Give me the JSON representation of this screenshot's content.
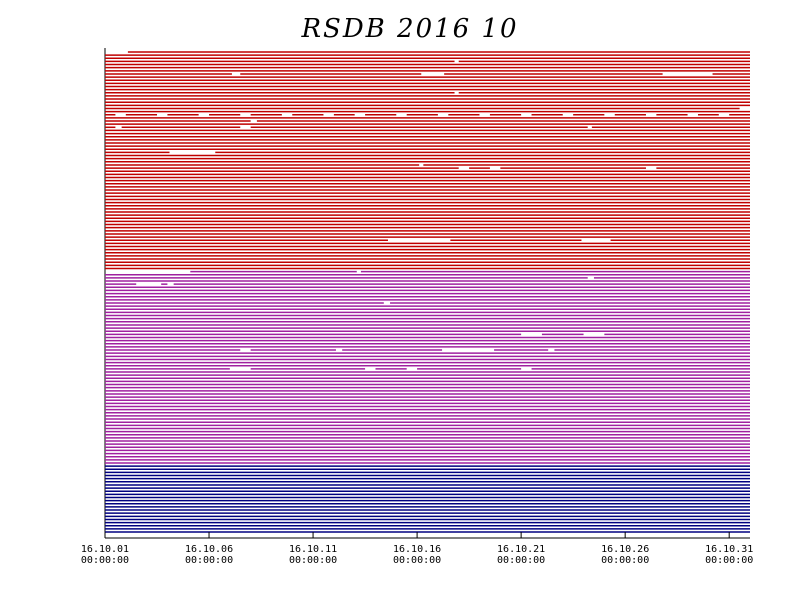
{
  "chart_data": {
    "type": "timeline",
    "title": "RSDB  2016  10",
    "xlim": [
      1,
      32
    ],
    "xticks": [
      {
        "value": 1,
        "label": "16.10.01 00:00:00"
      },
      {
        "value": 6,
        "label": "16.10.06 00:00:00"
      },
      {
        "value": 11,
        "label": "16.10.11 00:00:00"
      },
      {
        "value": 16,
        "label": "16.10.16 00:00:00"
      },
      {
        "value": 21,
        "label": "16.10.21 00:00:00"
      },
      {
        "value": 26,
        "label": "16.10.26 00:00:00"
      },
      {
        "value": 31,
        "label": "16.10.31 00:00:00"
      }
    ],
    "series": [
      {
        "color": "#c00000",
        "values": [
          [
            [
              2.1,
              32
            ]
          ],
          [
            [
              1,
              32
            ]
          ],
          [
            [
              1,
              32
            ]
          ],
          [
            [
              1,
              17.8
            ],
            [
              18,
              32
            ]
          ],
          [
            [
              1,
              32
            ]
          ],
          [
            [
              1,
              32
            ]
          ],
          [
            [
              1,
              32
            ]
          ],
          [
            [
              1,
              7.1
            ],
            [
              7.5,
              16.2
            ],
            [
              17.3,
              27.8
            ],
            [
              30.2,
              32
            ]
          ],
          [
            [
              1,
              32
            ]
          ],
          [
            [
              1,
              32
            ]
          ],
          [
            [
              1,
              32
            ]
          ],
          [
            [
              1,
              32
            ]
          ],
          [
            [
              1,
              32
            ]
          ],
          [
            [
              1,
              17.8
            ],
            [
              18,
              32
            ]
          ],
          [
            [
              1,
              32
            ]
          ],
          [
            [
              1,
              32
            ]
          ],
          [
            [
              1,
              32
            ]
          ],
          [
            [
              1,
              32
            ]
          ],
          [
            [
              1,
              31.5
            ],
            [
              32,
              32
            ]
          ],
          [
            [
              1,
              32
            ]
          ],
          [
            [
              1,
              1.5
            ],
            [
              2,
              3.5
            ],
            [
              4,
              5.5
            ],
            [
              6,
              7.5
            ],
            [
              8,
              9.5
            ],
            [
              10,
              11.5
            ],
            [
              12,
              13
            ],
            [
              13.5,
              15
            ],
            [
              15.5,
              17
            ],
            [
              17.5,
              19
            ],
            [
              19.5,
              21
            ],
            [
              21.5,
              23
            ],
            [
              23.5,
              25
            ],
            [
              25.5,
              27
            ],
            [
              27.5,
              29
            ],
            [
              29.5,
              30.5
            ],
            [
              31,
              32
            ]
          ],
          [
            [
              1,
              32
            ]
          ],
          [
            [
              1,
              8
            ],
            [
              8.3,
              32
            ]
          ],
          [
            [
              1,
              32
            ]
          ],
          [
            [
              1,
              1.5
            ],
            [
              1.8,
              7.5
            ],
            [
              8,
              24.2
            ],
            [
              24.4,
              32
            ]
          ],
          [
            [
              1,
              32
            ]
          ],
          [
            [
              1,
              32
            ]
          ],
          [
            [
              1,
              32
            ]
          ],
          [
            [
              1,
              32
            ]
          ],
          [
            [
              1,
              32
            ]
          ],
          [
            [
              1,
              32
            ]
          ],
          [
            [
              1,
              32
            ]
          ],
          [
            [
              1,
              4.1
            ],
            [
              6.3,
              32
            ]
          ],
          [
            [
              1,
              32
            ]
          ],
          [
            [
              1,
              32
            ]
          ],
          [
            [
              1,
              32
            ]
          ],
          [
            [
              1,
              16.1
            ],
            [
              16.3,
              32
            ]
          ],
          [
            [
              1,
              18
            ],
            [
              18.5,
              19.5
            ],
            [
              20,
              27
            ],
            [
              27.5,
              32
            ]
          ],
          [
            [
              1,
              32
            ]
          ],
          [
            [
              1,
              32
            ]
          ],
          [
            [
              1,
              32
            ]
          ],
          [
            [
              1,
              32
            ]
          ],
          [
            [
              1,
              32
            ]
          ],
          [
            [
              1,
              32
            ]
          ],
          [
            [
              1,
              32
            ]
          ],
          [
            [
              1,
              32
            ]
          ],
          [
            [
              1,
              32
            ]
          ],
          [
            [
              1,
              32
            ]
          ],
          [
            [
              1,
              32
            ]
          ],
          [
            [
              1,
              32
            ]
          ],
          [
            [
              1,
              32
            ]
          ],
          [
            [
              1,
              32
            ]
          ],
          [
            [
              1,
              32
            ]
          ],
          [
            [
              1,
              32
            ]
          ],
          [
            [
              1,
              32
            ]
          ],
          [
            [
              1,
              32
            ]
          ],
          [
            [
              1,
              32
            ]
          ],
          [
            [
              1,
              32
            ]
          ],
          [
            [
              1,
              32
            ]
          ],
          [
            [
              1,
              32
            ]
          ],
          [
            [
              1,
              14.6
            ],
            [
              17.6,
              23.9
            ],
            [
              25.3,
              32
            ]
          ],
          [
            [
              1,
              32
            ]
          ],
          [
            [
              1,
              32
            ]
          ],
          [
            [
              1,
              32
            ]
          ],
          [
            [
              1,
              32
            ]
          ],
          [
            [
              1,
              32
            ]
          ],
          [
            [
              1,
              32
            ]
          ],
          [
            [
              1,
              32
            ]
          ],
          [
            [
              1,
              32
            ]
          ],
          [
            [
              1,
              32
            ]
          ]
        ]
      },
      {
        "color": "#a020a0",
        "values": [
          [
            [
              5.1,
              13.1
            ],
            [
              13.3,
              32
            ]
          ],
          [
            [
              1,
              32
            ]
          ],
          [
            [
              1,
              24.2
            ],
            [
              24.5,
              32
            ]
          ],
          [
            [
              1,
              32
            ]
          ],
          [
            [
              1,
              2.5
            ],
            [
              3.7,
              4
            ],
            [
              4.3,
              32
            ]
          ],
          [
            [
              1,
              32
            ]
          ],
          [
            [
              1,
              32
            ]
          ],
          [
            [
              1,
              32
            ]
          ],
          [
            [
              1,
              32
            ]
          ],
          [
            [
              1,
              32
            ]
          ],
          [
            [
              1,
              14.4
            ],
            [
              14.7,
              32
            ]
          ],
          [
            [
              1,
              32
            ]
          ],
          [
            [
              1,
              32
            ]
          ],
          [
            [
              1,
              32
            ]
          ],
          [
            [
              1,
              32
            ]
          ],
          [
            [
              1,
              32
            ]
          ],
          [
            [
              1,
              32
            ]
          ],
          [
            [
              1,
              32
            ]
          ],
          [
            [
              1,
              32
            ]
          ],
          [
            [
              1,
              32
            ]
          ],
          [
            [
              1,
              21
            ],
            [
              22,
              24
            ],
            [
              25,
              32
            ]
          ],
          [
            [
              1,
              32
            ]
          ],
          [
            [
              1,
              32
            ]
          ],
          [
            [
              1,
              32
            ]
          ],
          [
            [
              1,
              32
            ]
          ],
          [
            [
              1,
              7.5
            ],
            [
              8,
              12.1
            ],
            [
              12.4,
              17.2
            ],
            [
              19.7,
              22.3
            ],
            [
              22.6,
              32
            ]
          ],
          [
            [
              1,
              32
            ]
          ],
          [
            [
              1,
              32
            ]
          ],
          [
            [
              1,
              32
            ]
          ],
          [
            [
              1,
              32
            ]
          ],
          [
            [
              1,
              32
            ]
          ],
          [
            [
              1,
              7
            ],
            [
              8,
              13.5
            ],
            [
              14,
              15.5
            ],
            [
              16,
              21
            ],
            [
              21.5,
              32
            ]
          ],
          [
            [
              1,
              32
            ]
          ],
          [
            [
              1,
              32
            ]
          ],
          [
            [
              1,
              32
            ]
          ],
          [
            [
              1,
              32
            ]
          ],
          [
            [
              1,
              32
            ]
          ],
          [
            [
              1,
              32
            ]
          ],
          [
            [
              1,
              32
            ]
          ],
          [
            [
              1,
              32
            ]
          ],
          [
            [
              1,
              32
            ]
          ],
          [
            [
              1,
              32
            ]
          ],
          [
            [
              1,
              32
            ]
          ],
          [
            [
              1,
              32
            ]
          ],
          [
            [
              1,
              32
            ]
          ],
          [
            [
              1,
              32
            ]
          ],
          [
            [
              1,
              32
            ]
          ],
          [
            [
              1,
              32
            ]
          ],
          [
            [
              1,
              32
            ]
          ],
          [
            [
              1,
              32
            ]
          ],
          [
            [
              1,
              32
            ]
          ],
          [
            [
              1,
              32
            ]
          ],
          [
            [
              1,
              32
            ]
          ],
          [
            [
              1,
              32
            ]
          ],
          [
            [
              1,
              32
            ]
          ],
          [
            [
              1,
              32
            ]
          ],
          [
            [
              1,
              32
            ]
          ],
          [
            [
              1,
              32
            ]
          ],
          [
            [
              1,
              32
            ]
          ],
          [
            [
              1,
              32
            ]
          ],
          [
            [
              1,
              32
            ]
          ],
          [
            [
              1,
              32
            ]
          ]
        ]
      },
      {
        "color": "#000080",
        "values": [
          [
            [
              1,
              32
            ]
          ],
          [
            [
              1,
              32
            ]
          ],
          [
            [
              1,
              32
            ]
          ],
          [
            [
              1,
              32
            ]
          ],
          [
            [
              1,
              32
            ]
          ],
          [
            [
              1,
              32
            ]
          ],
          [
            [
              1,
              32
            ]
          ],
          [
            [
              1,
              32
            ]
          ],
          [
            [
              1,
              32
            ]
          ],
          [
            [
              1,
              32
            ]
          ],
          [
            [
              1,
              32
            ]
          ],
          [
            [
              1,
              32
            ]
          ],
          [
            [
              1,
              32
            ]
          ],
          [
            [
              1,
              32
            ]
          ],
          [
            [
              1,
              32
            ]
          ],
          [
            [
              1,
              32
            ]
          ],
          [
            [
              1,
              32
            ]
          ],
          [
            [
              1,
              32
            ]
          ],
          [
            [
              1,
              32
            ]
          ],
          [
            [
              1,
              32
            ]
          ],
          [
            [
              1,
              32
            ]
          ],
          [
            [
              1,
              32
            ]
          ]
        ]
      }
    ]
  }
}
